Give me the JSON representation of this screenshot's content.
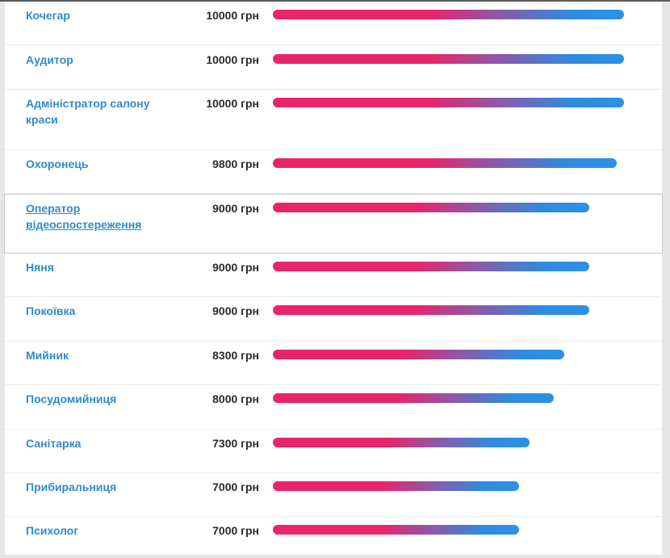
{
  "chart_data": {
    "type": "bar",
    "orientation": "horizontal",
    "title": "",
    "xlabel": "",
    "ylabel": "",
    "xlim": [
      0,
      10000
    ],
    "unit": "грн",
    "categories": [
      "Кочегар",
      "Аудитор",
      "Адміністратор салону краси",
      "Охоронець",
      "Оператор відеоспостереження",
      "Няня",
      "Покоївка",
      "Мийник",
      "Посудомийниця",
      "Санітарка",
      "Прибиральниця",
      "Психолог"
    ],
    "values": [
      10000,
      10000,
      10000,
      9800,
      9000,
      9000,
      9000,
      8300,
      8000,
      7300,
      7000,
      7000
    ],
    "value_labels": [
      "10000 грн",
      "10000 грн",
      "10000 грн",
      "9800 грн",
      "9000 грн",
      "9000 грн",
      "9000 грн",
      "8300 грн",
      "8000 грн",
      "7300 грн",
      "7000 грн",
      "7000 грн"
    ],
    "colors": {
      "bar_start": "#e8256a",
      "bar_end": "#2b91e6",
      "label": "#2f8bc9",
      "value": "#2b2b2b"
    }
  }
}
